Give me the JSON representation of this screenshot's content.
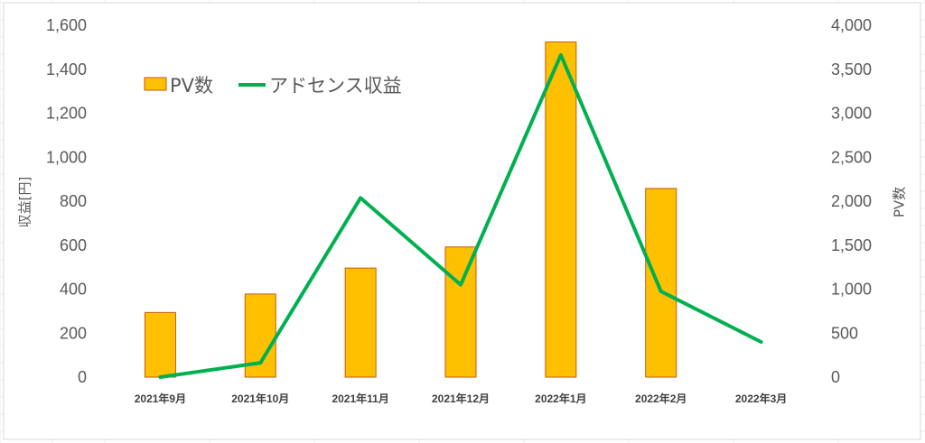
{
  "chart_data": {
    "type": "bar+line",
    "categories": [
      "2021年9月",
      "2021年10月",
      "2021年11月",
      "2021年12月",
      "2022年1月",
      "2022年2月",
      "2022年3月"
    ],
    "series": [
      {
        "name": "PV数",
        "type": "bar",
        "axis": "right",
        "color": "#FFC000",
        "border_color": "#C55A11",
        "values": [
          735,
          945,
          1240,
          1480,
          3810,
          2145,
          null
        ]
      },
      {
        "name": "アドセンス収益",
        "type": "line",
        "axis": "left",
        "color": "#00B050",
        "values": [
          0,
          65,
          815,
          420,
          1465,
          390,
          160
        ]
      }
    ],
    "left_axis": {
      "label": "収益[円]",
      "range": [
        0,
        1600
      ],
      "ticks": [
        "0",
        "200",
        "400",
        "600",
        "800",
        "1,000",
        "1,200",
        "1,400",
        "1,600"
      ]
    },
    "right_axis": {
      "label": "PV数",
      "range": [
        0,
        4000
      ],
      "ticks": [
        "0",
        "500",
        "1,000",
        "1,500",
        "2,000",
        "2,500",
        "3,000",
        "3,500",
        "4,000"
      ]
    },
    "legend_position": "top-left",
    "grid": false
  }
}
